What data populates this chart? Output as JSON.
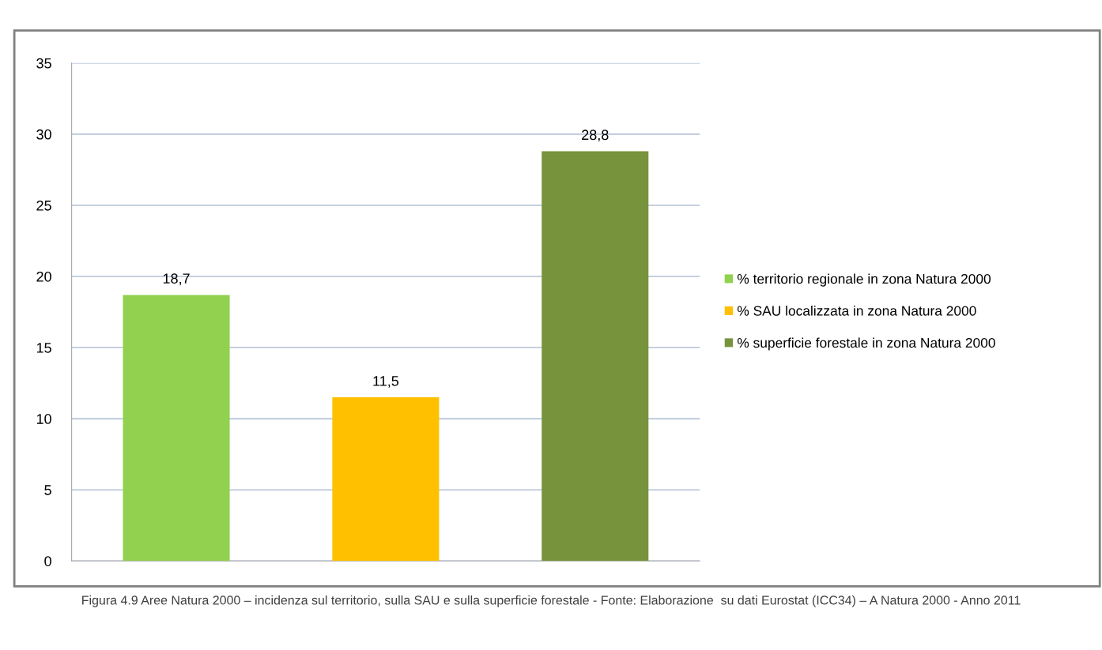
{
  "chart_data": {
    "type": "bar",
    "categories": [
      null,
      null,
      null
    ],
    "series": [
      {
        "name": "% territorio regionale in zona Natura 2000",
        "color": "#92d050",
        "values": [
          18.7,
          null,
          null
        ],
        "value_labels": [
          "18,7",
          null,
          null
        ]
      },
      {
        "name": "% SAU localizzata in zona Natura 2000",
        "color": "#ffc000",
        "values": [
          null,
          11.5,
          null
        ],
        "value_labels": [
          null,
          "11,5",
          null
        ]
      },
      {
        "name": "% superficie forestale in zona Natura 2000",
        "color": "#77933c",
        "values": [
          null,
          null,
          28.8
        ],
        "value_labels": [
          null,
          null,
          "28,8"
        ]
      }
    ],
    "ylim": [
      0,
      35
    ],
    "yticks": [
      0,
      5,
      10,
      15,
      20,
      25,
      30,
      35
    ],
    "grid": "y",
    "legend": "right",
    "annotations": [
      "Figura 4.9 Aree Natura 2000 – incidenza sul territorio, sulla SAU e sulla superficie forestale - Fonte: Elaborazione  su dati Eurostat (ICC34) – A Natura 2000 - Anno 2011"
    ]
  }
}
